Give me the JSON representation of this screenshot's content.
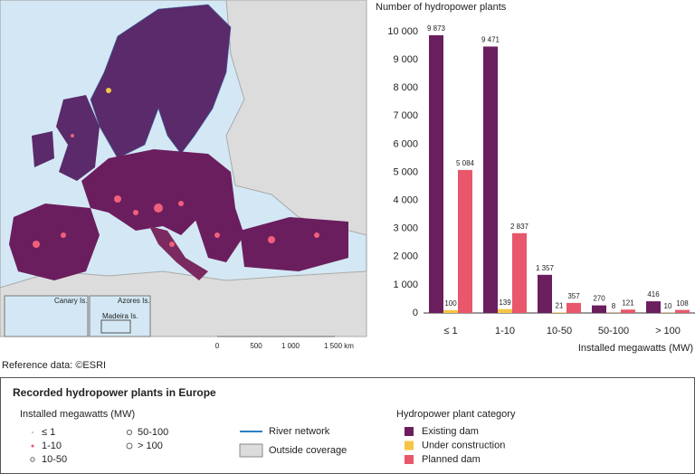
{
  "chart_data": {
    "type": "bar",
    "title": "Number of hydropower plants",
    "x_label": "Installed megawatts (MW)",
    "categories": [
      "≤ 1",
      "1-10",
      "10-50",
      "50-100",
      "> 100"
    ],
    "series": [
      {
        "name": "Existing dam",
        "color": "#6b1e5e",
        "values": [
          9873,
          9471,
          1357,
          270,
          416
        ],
        "value_labels": [
          "9 873",
          "9 471",
          "1 357",
          "270",
          "416"
        ]
      },
      {
        "name": "Under construction",
        "color": "#f6c445",
        "values": [
          100,
          139,
          21,
          8,
          10
        ],
        "value_labels": [
          "100",
          "139",
          "21",
          "8",
          "10"
        ]
      },
      {
        "name": "Planned dam",
        "color": "#e8576b",
        "values": [
          5084,
          2837,
          357,
          121,
          108
        ],
        "value_labels": [
          "5 084",
          "2 837",
          "357",
          "121",
          "108"
        ]
      }
    ],
    "ylim": [
      0,
      10000
    ],
    "yticks": [
      0,
      {
        "value": 1000,
        "label": "1 000"
      },
      {
        "value": 2000,
        "label": "2 000"
      },
      {
        "value": 3000,
        "label": "3 000"
      },
      {
        "value": 4000,
        "label": "4 000"
      },
      {
        "value": 5000,
        "label": "5 000"
      },
      {
        "value": 6000,
        "label": "6 000"
      },
      {
        "value": 7000,
        "label": "7 000"
      },
      {
        "value": 8000,
        "label": "8 000"
      },
      {
        "value": 9000,
        "label": "9 000"
      },
      {
        "value": 10000,
        "label": "10 000"
      }
    ],
    "grid": false,
    "legend_title": "Hydropower plant category"
  },
  "map": {
    "insets": [
      "Canary Is.",
      "Azores Is.",
      "Madeira Is."
    ],
    "scale": [
      "0",
      "500",
      "1 000",
      "1 500 km"
    ],
    "source": "Reference data: ©ESRI"
  },
  "legend": {
    "title": "Recorded hydropower plants in Europe",
    "size_title": "Installed megawatts (MW)",
    "sizes": [
      "≤ 1",
      "1-10",
      "10-50",
      "50-100",
      "> 100"
    ],
    "river": "River network",
    "outside": "Outside coverage"
  }
}
